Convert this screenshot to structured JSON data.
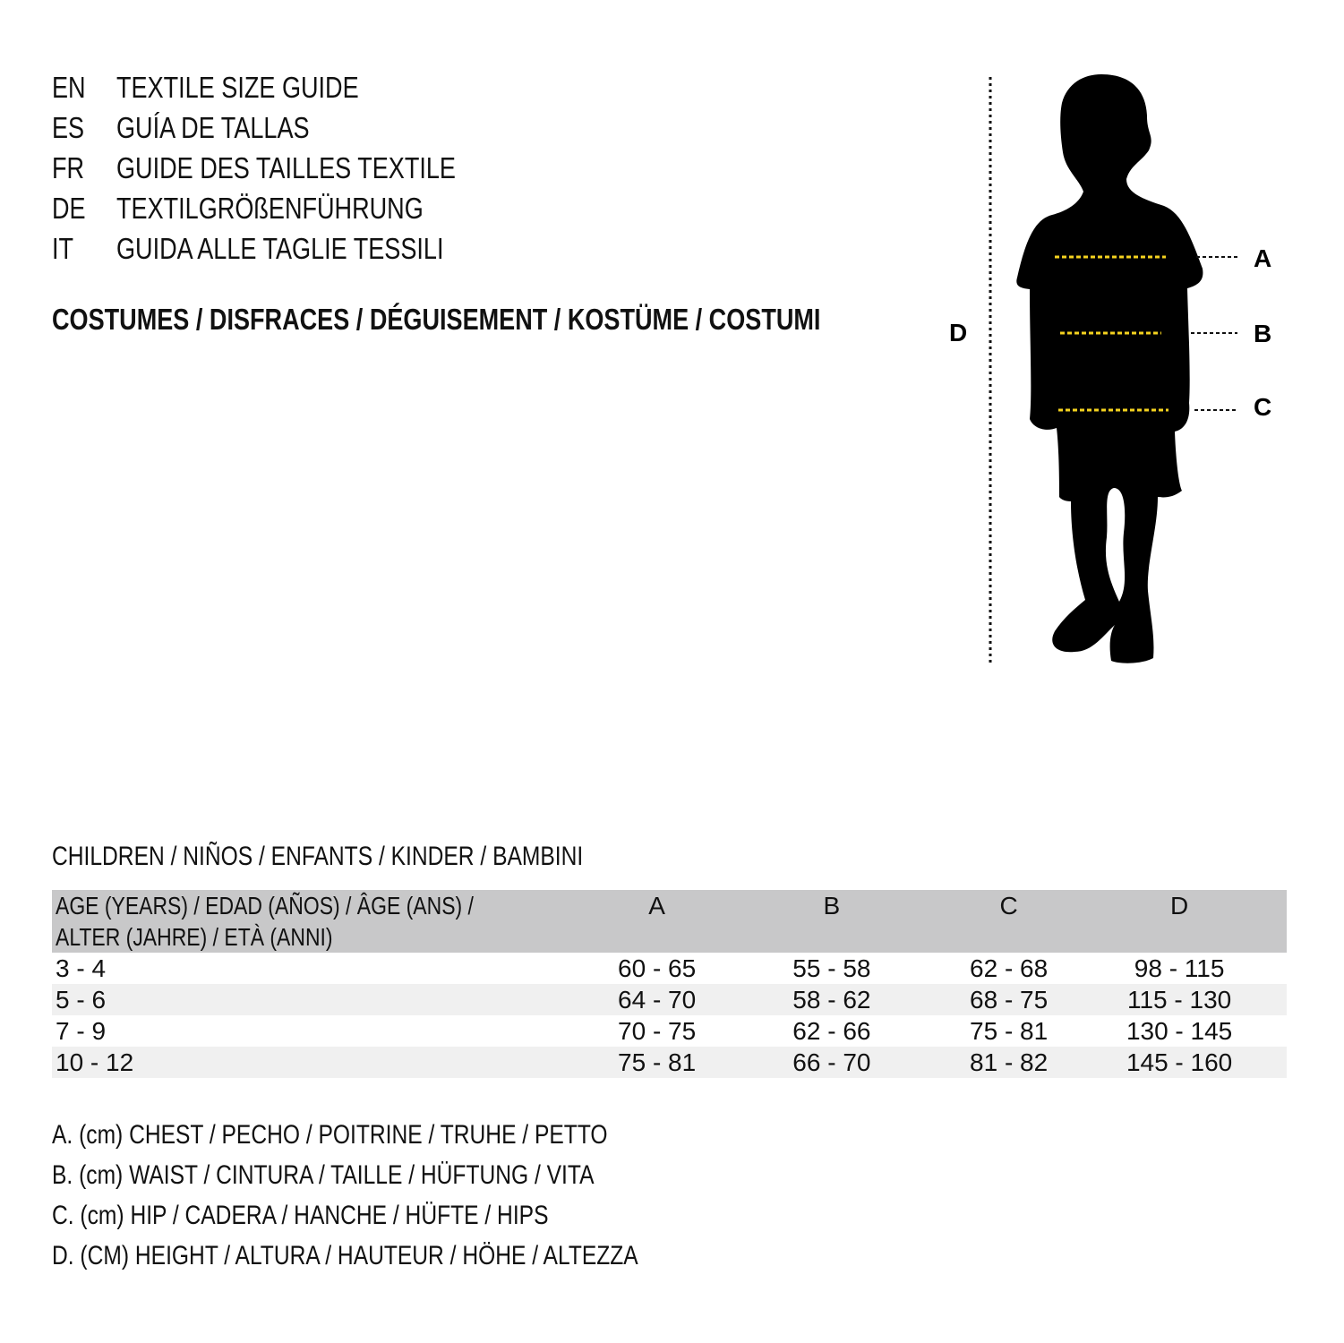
{
  "languages": [
    {
      "code": "EN",
      "title": "TEXTILE SIZE GUIDE"
    },
    {
      "code": "ES",
      "title": "GUÍA DE TALLAS"
    },
    {
      "code": "FR",
      "title": "GUIDE DES TAILLES TEXTILE"
    },
    {
      "code": "DE",
      "title": "TEXTILGRÖßENFÜHRUNG"
    },
    {
      "code": "IT",
      "title": "GUIDA ALLE TAGLIE TESSILI"
    }
  ],
  "category": "COSTUMES / DISFRACES / DÉGUISEMENT / KOSTÜME / COSTUMI",
  "figure": {
    "labels": {
      "a": "A",
      "b": "B",
      "c": "C",
      "d": "D"
    },
    "measure_line_color": "#f5d21f"
  },
  "table": {
    "title": "CHILDREN / NIÑOS / ENFANTS / KINDER / BAMBINI",
    "headers": {
      "age_line1": "AGE (YEARS) / EDAD (AÑOS) / ÂGE (ANS) /",
      "age_line2": "ALTER (JAHRE) / ETÀ (ANNI)",
      "a": "A",
      "b": "B",
      "c": "C",
      "d": "D"
    },
    "rows": [
      {
        "age": "3 - 4",
        "a": "60 - 65",
        "b": "55 - 58",
        "c": "62 - 68",
        "d": "98 - 115"
      },
      {
        "age": "5 - 6",
        "a": "64 - 70",
        "b": "58 - 62",
        "c": "68 - 75",
        "d": "115 - 130"
      },
      {
        "age": "7 - 9",
        "a": "70 - 75",
        "b": "62 - 66",
        "c": "75 - 81",
        "d": "130 - 145"
      },
      {
        "age": "10 - 12",
        "a": "75 - 81",
        "b": "66 - 70",
        "c": "81 - 82",
        "d": "145 - 160"
      }
    ]
  },
  "legend": [
    "A. (cm) CHEST / PECHO / POITRINE / TRUHE / PETTO",
    "B. (cm) WAIST / CINTURA / TAILLE / HÜFTUNG / VITA",
    "C. (cm) HIP / CADERA / HANCHE / HÜFTE / HIPS",
    "D. (CM) HEIGHT / ALTURA / HAUTEUR / HÖHE / ALTEZZA"
  ]
}
